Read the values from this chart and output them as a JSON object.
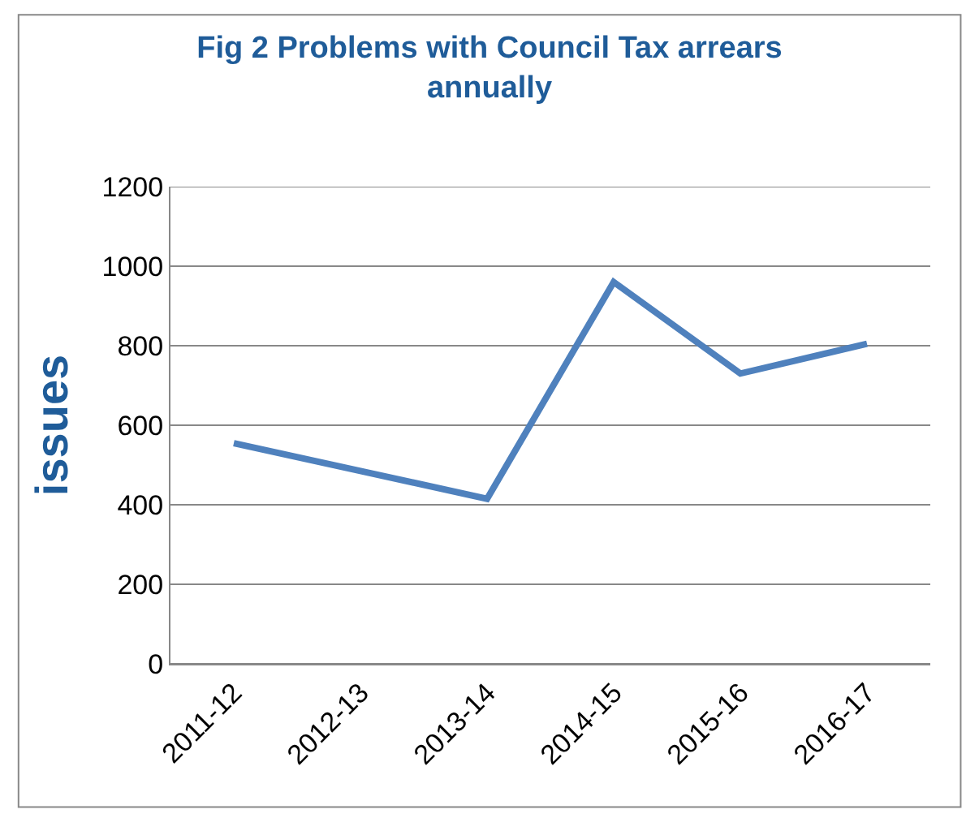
{
  "chart_data": {
    "type": "line",
    "title": "Fig 2 Problems with Council Tax arrears annually",
    "ylabel": "issues",
    "categories": [
      "2011-12",
      "2012-13",
      "2013-14",
      "2014-15",
      "2015-16",
      "2016-17"
    ],
    "series": [
      {
        "color": "#4f81bd",
        "values": [
          555,
          485,
          415,
          960,
          730,
          805
        ]
      }
    ],
    "ylim": [
      0,
      1200
    ],
    "yticks": [
      0,
      200,
      400,
      600,
      800,
      1000,
      1200
    ],
    "grid": "y",
    "marker": "none",
    "line_style": "solid"
  }
}
